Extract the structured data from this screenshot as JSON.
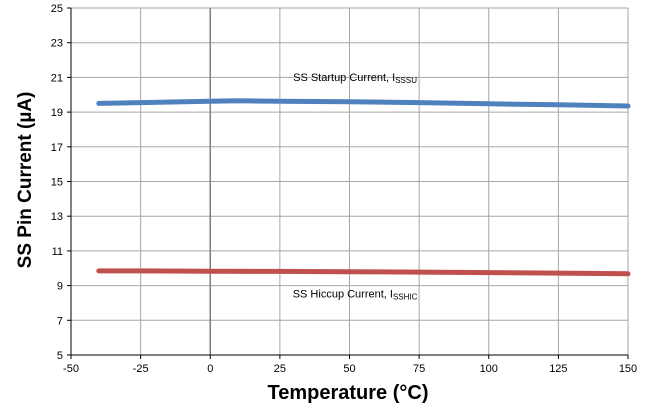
{
  "chart_data": {
    "type": "line",
    "xlabel": "Temperature (°C)",
    "ylabel": "SS Pin Current  (µA)",
    "xlim": [
      -50,
      150
    ],
    "ylim": [
      5,
      25
    ],
    "x_ticks": [
      -50,
      -25,
      0,
      25,
      50,
      75,
      100,
      125,
      150
    ],
    "y_ticks": [
      5,
      7,
      9,
      11,
      13,
      15,
      17,
      19,
      21,
      23,
      25
    ],
    "grid": true,
    "colors": {
      "startup": "#4f81bd",
      "hiccup": "#c0504d",
      "grid": "#a6a6a6",
      "zero_line": "#7f7f7f"
    },
    "series": [
      {
        "key": "startup",
        "name": "SS Startup Current, ISSSU",
        "label_main": "SS Startup Current, I",
        "label_sub": "SSSU",
        "x": [
          -40,
          -25,
          0,
          10,
          25,
          50,
          75,
          100,
          125,
          150
        ],
        "y": [
          19.5,
          19.55,
          19.63,
          19.65,
          19.63,
          19.6,
          19.55,
          19.48,
          19.42,
          19.35
        ]
      },
      {
        "key": "hiccup",
        "name": "SS Hiccup Current, ISSHIC",
        "label_main": "SS Hiccup Current, I",
        "label_sub": "SSHIC",
        "x": [
          -40,
          -25,
          0,
          25,
          50,
          75,
          100,
          125,
          150
        ],
        "y": [
          9.85,
          9.85,
          9.83,
          9.82,
          9.8,
          9.78,
          9.75,
          9.72,
          9.68
        ]
      }
    ]
  }
}
